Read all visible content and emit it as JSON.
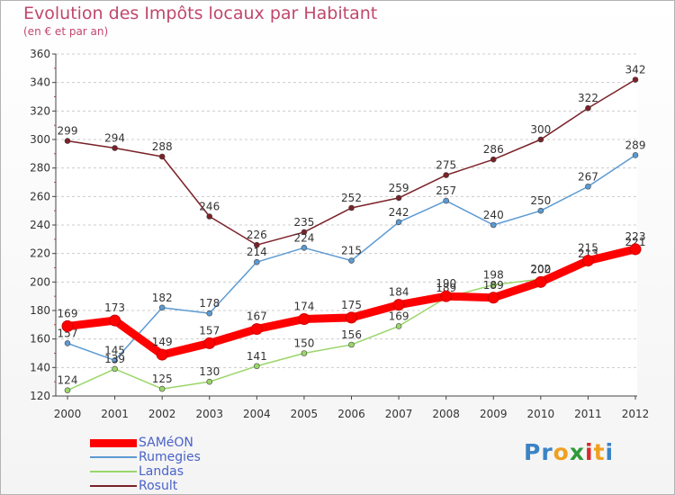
{
  "header": {
    "title": "Evolution des Impôts locaux par Habitant",
    "subtitle": "(en € et par an)"
  },
  "logo": {
    "text": "Proxiti",
    "letters": [
      {
        "ch": "P",
        "color": "#3b83c5"
      },
      {
        "ch": "r",
        "color": "#3b83c5"
      },
      {
        "ch": "o",
        "color": "#f0a020"
      },
      {
        "ch": "x",
        "color": "#2f9a3a"
      },
      {
        "ch": "i",
        "color": "#d82a2a"
      },
      {
        "ch": "t",
        "color": "#f0a020"
      },
      {
        "ch": "i",
        "color": "#3b83c5"
      }
    ]
  },
  "chart_data": {
    "type": "line",
    "x": [
      "2000",
      "2001",
      "2002",
      "2003",
      "2004",
      "2005",
      "2006",
      "2007",
      "2008",
      "2009",
      "2010",
      "2011",
      "2012"
    ],
    "ylim": [
      120,
      360
    ],
    "yticks": [
      120,
      140,
      160,
      180,
      200,
      220,
      240,
      260,
      280,
      300,
      320,
      340,
      360
    ],
    "title": "Evolution des Impôts locaux par Habitant",
    "subtitle": "(en € et par an)",
    "grid": "horizontal dashed",
    "legend": "bottom-left",
    "series": [
      {
        "name": "Rosult",
        "color": "#7a2128",
        "values": [
          299,
          294,
          288,
          246,
          226,
          235,
          252,
          259,
          275,
          286,
          300,
          322,
          342
        ]
      },
      {
        "name": "Rumegies",
        "color": "#5b9ad2",
        "values": [
          157,
          145,
          182,
          178,
          214,
          224,
          215,
          242,
          257,
          240,
          250,
          267,
          289
        ]
      },
      {
        "name": "Landas",
        "color": "#9ad66a",
        "values": [
          124,
          139,
          125,
          130,
          141,
          150,
          156,
          169,
          189,
          198,
          202,
          213,
          221
        ]
      },
      {
        "name": "SAMéON",
        "color": "#ff0000",
        "values": [
          169,
          173,
          149,
          157,
          167,
          174,
          175,
          184,
          190,
          189,
          200,
          215,
          223
        ]
      }
    ],
    "legend_order": [
      "SAMéON",
      "Rumegies",
      "Landas",
      "Rosult"
    ]
  }
}
